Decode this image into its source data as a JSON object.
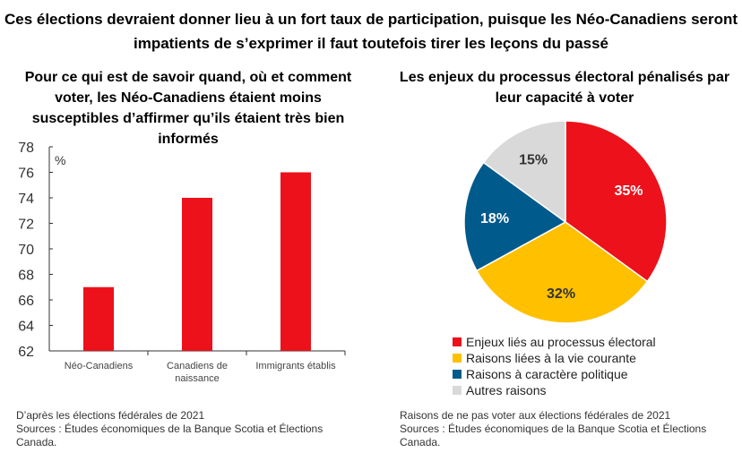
{
  "title": "Ces élections devraient donner lieu à un fort taux de participation, puisque les Néo-Canadiens seront impatients de s’exprimer il faut toutefois tirer les leçons du passé",
  "chart_data": [
    {
      "type": "bar",
      "title": "Pour ce qui est de savoir quand, où et comment voter, les Néo-Canadiens étaient moins susceptibles d’affirmer qu’ils étaient très bien informés",
      "ylabel": "%",
      "categories": [
        "Néo-Canadiens",
        "Canadiens de naissance",
        "Immigrants établis"
      ],
      "values": [
        67,
        74,
        76
      ],
      "ylim": [
        62,
        78
      ],
      "yticks": [
        62,
        64,
        66,
        68,
        70,
        72,
        74,
        76,
        78
      ],
      "color": "#ec111a",
      "grid": false,
      "note": "D’après les élections fédérales de 2021",
      "source": "Sources : Études économiques de la Banque Scotia et Élections Canada."
    },
    {
      "type": "pie",
      "title": "Les enjeux du processus électoral pénalisés par leur capacité à voter",
      "slices": [
        {
          "label": "Enjeux liés au processus électoral",
          "value": 35,
          "text": "35%",
          "color": "#ec111a"
        },
        {
          "label": "Raisons liées à la vie courante",
          "value": 32,
          "text": "32%",
          "color": "#ffc000"
        },
        {
          "label": "Raisons à caractère politique",
          "value": 18,
          "text": "18%",
          "color": "#005a8c"
        },
        {
          "label": "Autres raisons",
          "value": 15,
          "text": "15%",
          "color": "#d9d9d9"
        }
      ],
      "legend": "bottom",
      "note": "Raisons de ne pas voter aux élections fédérales de 2021",
      "source": "Sources : Études économiques de la Banque Scotia et Élections Canada."
    }
  ]
}
